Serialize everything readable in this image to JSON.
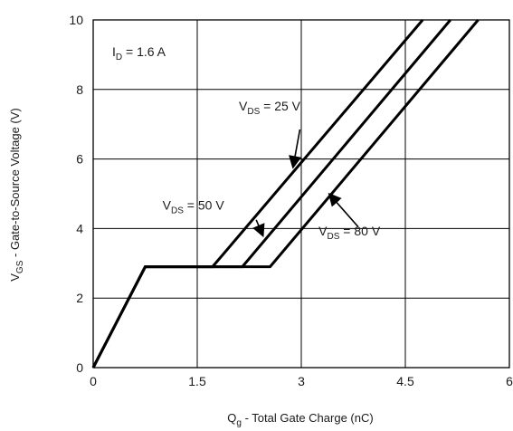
{
  "chart_data": {
    "type": "line",
    "xlabel": {
      "main": "Q",
      "sub": "g",
      "rest": " - Total Gate Charge (nC)"
    },
    "ylabel": {
      "main": "V",
      "sub": "GS",
      "rest": " - Gate-to-Source Voltage (V)"
    },
    "xlim": [
      0,
      6
    ],
    "ylim": [
      0,
      10
    ],
    "x_ticks": [
      0,
      1.5,
      3,
      4.5,
      6
    ],
    "x_tick_labels": [
      "0",
      "1.5",
      "3",
      "4.5",
      "6"
    ],
    "y_ticks": [
      0,
      2,
      4,
      6,
      8,
      10
    ],
    "y_tick_labels": [
      "0",
      "2",
      "4",
      "6",
      "8",
      "10"
    ],
    "grid": true,
    "condition": {
      "main": "I",
      "sub": "D",
      "rest": " = 1.6 A"
    },
    "series": [
      {
        "label": {
          "main": "V",
          "sub": "DS",
          "rest": " = 25 V"
        },
        "points": [
          [
            0,
            0
          ],
          [
            0.75,
            2.9
          ],
          [
            1.72,
            2.9
          ],
          [
            4.75,
            10
          ]
        ]
      },
      {
        "label": {
          "main": "V",
          "sub": "DS",
          "rest": " = 50 V"
        },
        "points": [
          [
            0,
            0
          ],
          [
            0.75,
            2.9
          ],
          [
            2.15,
            2.9
          ],
          [
            5.15,
            10
          ]
        ]
      },
      {
        "label": {
          "main": "V",
          "sub": "DS",
          "rest": " = 80 V"
        },
        "points": [
          [
            0,
            0
          ],
          [
            0.75,
            2.9
          ],
          [
            2.55,
            2.9
          ],
          [
            5.55,
            10
          ]
        ]
      }
    ],
    "annotations": [
      {
        "series": 0,
        "text_at": [
          2.1,
          7.4
        ],
        "arrow_from": [
          2.98,
          6.85
        ],
        "arrow_to": [
          2.88,
          5.75
        ]
      },
      {
        "series": 1,
        "text_at": [
          1.0,
          4.55
        ],
        "arrow_from": [
          2.35,
          4.25
        ],
        "arrow_to": [
          2.45,
          3.78
        ]
      },
      {
        "series": 2,
        "text_at": [
          3.25,
          3.8
        ],
        "arrow_from": [
          3.82,
          4.05
        ],
        "arrow_to": [
          3.4,
          5.0
        ]
      }
    ]
  }
}
